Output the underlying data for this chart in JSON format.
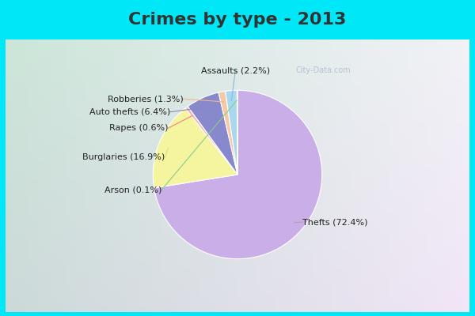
{
  "title": "Crimes by type - 2013",
  "labels": [
    "Thefts",
    "Burglaries",
    "Rapes",
    "Auto thefts",
    "Robberies",
    "Assaults",
    "Arson"
  ],
  "percentages": [
    72.4,
    16.9,
    0.6,
    6.4,
    1.3,
    2.2,
    0.1
  ],
  "colors": [
    "#c9aee8",
    "#f5f5a0",
    "#f0b8b8",
    "#8888cc",
    "#f5c8a8",
    "#a8d8f0",
    "#c8e8c8"
  ],
  "label_texts": [
    "Thefts (72.4%)",
    "Burglaries (16.9%)",
    "Rapes (0.6%)",
    "Auto thefts (6.4%)",
    "Robberies (1.3%)",
    "Assaults (2.2%)",
    "Arson (0.1%)"
  ],
  "line_colors": [
    "#aaaaaa",
    "#dddd88",
    "#f08080",
    "#8888bb",
    "#f0b888",
    "#88bbdd",
    "#88cc88"
  ],
  "bg_top_color": "#00e8f8",
  "title_color": "#333333",
  "title_fontsize": 16,
  "label_fontsize": 8,
  "watermark_text": "City-Data.com"
}
